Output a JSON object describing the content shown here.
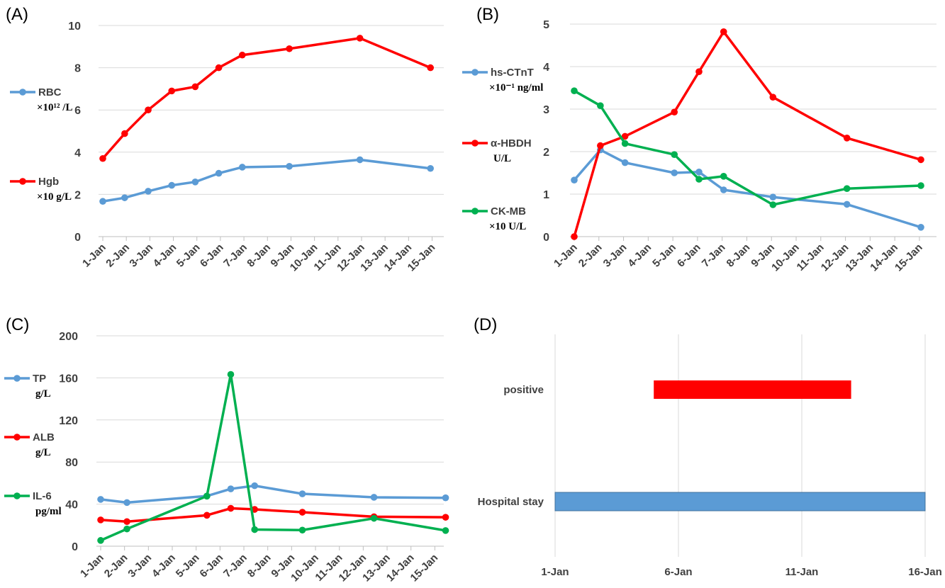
{
  "chart_data": [
    {
      "panel": "(A)",
      "type": "line",
      "categories": [
        "1-Jan",
        "2-Jan",
        "3-Jan",
        "4-Jan",
        "5-Jan",
        "6-Jan",
        "7-Jan",
        "8-Jan",
        "9-Jan",
        "10-Jan",
        "11-Jan",
        "12-Jan",
        "13-Jan",
        "14-Jan",
        "15-Jan"
      ],
      "ylim": [
        0,
        10
      ],
      "yticks": [
        0,
        2,
        4,
        6,
        8,
        10
      ],
      "grid": true,
      "legend_position": "left",
      "series": [
        {
          "name": "RBC",
          "unit": "×10¹² /L",
          "color": "#5b9bd5",
          "points": [
            [
              0,
              1.67
            ],
            [
              0.93,
              1.84
            ],
            [
              1.93,
              2.15
            ],
            [
              2.93,
              2.43
            ],
            [
              3.93,
              2.59
            ],
            [
              4.93,
              3.0
            ],
            [
              5.93,
              3.29
            ],
            [
              7.93,
              3.33
            ],
            [
              10.93,
              3.64
            ],
            [
              13.93,
              3.23
            ]
          ]
        },
        {
          "name": "Hgb",
          "unit": "×10 g/L",
          "color": "#ff0000",
          "points": [
            [
              0,
              3.7
            ],
            [
              0.93,
              4.88
            ],
            [
              1.93,
              6.0
            ],
            [
              2.93,
              6.9
            ],
            [
              3.93,
              7.1
            ],
            [
              4.93,
              8.0
            ],
            [
              5.93,
              8.6
            ],
            [
              7.93,
              8.9
            ],
            [
              10.93,
              9.4
            ],
            [
              13.93,
              8.0
            ]
          ]
        }
      ]
    },
    {
      "panel": "(B)",
      "type": "line",
      "categories": [
        "1-Jan",
        "2-Jan",
        "3-Jan",
        "4-Jan",
        "5-Jan",
        "6-Jan",
        "7-Jan",
        "8-Jan",
        "9-Jan",
        "10-Jan",
        "11-Jan",
        "12-Jan",
        "13-Jan",
        "14-Jan",
        "15-Jan"
      ],
      "ylim": [
        0,
        5
      ],
      "yticks": [
        0,
        1,
        2,
        3,
        4,
        5
      ],
      "grid": true,
      "legend_position": "left",
      "series": [
        {
          "name": "hs-CTnT",
          "unit": "×10⁻¹ ng/ml",
          "color": "#5b9bd5",
          "points": [
            [
              0,
              1.33
            ],
            [
              1.06,
              2.04
            ],
            [
              2.06,
              1.74
            ],
            [
              4.06,
              1.5
            ],
            [
              5.06,
              1.52
            ],
            [
              6.06,
              1.1
            ],
            [
              8.06,
              0.93
            ],
            [
              11.06,
              0.76
            ],
            [
              14.06,
              0.22
            ]
          ]
        },
        {
          "name": "α-HBDH",
          "unit": "U/L",
          "color": "#ff0000",
          "points": [
            [
              0,
              0.0
            ],
            [
              1.06,
              2.14
            ],
            [
              2.06,
              2.36
            ],
            [
              4.06,
              2.93
            ],
            [
              5.06,
              3.88
            ],
            [
              6.06,
              4.82
            ],
            [
              8.06,
              3.28
            ],
            [
              11.06,
              2.32
            ],
            [
              14.06,
              1.81
            ]
          ]
        },
        {
          "name": "CK-MB",
          "unit": "×10 U/L",
          "color": "#00b050",
          "points": [
            [
              0,
              3.43
            ],
            [
              1.06,
              3.08
            ],
            [
              2.06,
              2.19
            ],
            [
              4.06,
              1.93
            ],
            [
              5.06,
              1.35
            ],
            [
              6.06,
              1.42
            ],
            [
              8.06,
              0.75
            ],
            [
              11.06,
              1.13
            ],
            [
              14.06,
              1.2
            ]
          ]
        }
      ]
    },
    {
      "panel": "(C)",
      "type": "line",
      "categories": [
        "1-Jan",
        "2-Jan",
        "3-Jan",
        "4-Jan",
        "5-Jan",
        "6-Jan",
        "7-Jan",
        "8-Jan",
        "9-Jan",
        "10-Jan",
        "11-Jan",
        "12-Jan",
        "13-Jan",
        "14-Jan",
        "15-Jan"
      ],
      "ylim": [
        0,
        200
      ],
      "yticks": [
        0,
        40,
        80,
        120,
        160,
        200
      ],
      "grid": true,
      "legend_position": "left",
      "series": [
        {
          "name": "TP",
          "unit": "g/L",
          "color": "#5b9bd5",
          "points": [
            [
              0,
              44.5
            ],
            [
              1.1,
              41.5
            ],
            [
              4.45,
              47.7
            ],
            [
              5.45,
              54.5
            ],
            [
              6.45,
              57.5
            ],
            [
              8.45,
              49.8
            ],
            [
              11.45,
              46.5
            ],
            [
              14.45,
              46.0
            ]
          ]
        },
        {
          "name": "ALB",
          "unit": "g/L",
          "color": "#ff0000",
          "points": [
            [
              0,
              25.0
            ],
            [
              1.1,
              23.4
            ],
            [
              4.45,
              29.4
            ],
            [
              5.45,
              36.0
            ],
            [
              6.45,
              35.0
            ],
            [
              8.45,
              32.3
            ],
            [
              11.45,
              28.0
            ],
            [
              14.45,
              27.5
            ]
          ]
        },
        {
          "name": "IL-6",
          "unit": "pg/ml",
          "color": "#00b050",
          "points": [
            [
              0,
              5.5
            ],
            [
              1.1,
              16.4
            ],
            [
              4.45,
              47.6
            ],
            [
              5.45,
              163.3
            ],
            [
              6.45,
              15.8
            ],
            [
              8.45,
              15.3
            ],
            [
              11.45,
              26.5
            ],
            [
              14.45,
              14.9
            ]
          ]
        }
      ]
    },
    {
      "panel": "(D)",
      "type": "bar",
      "orientation": "horizontal",
      "x_ticks": [
        "1-Jan",
        "6-Jan",
        "11-Jan",
        "16-Jan"
      ],
      "x_tick_days": [
        1,
        6,
        11,
        16
      ],
      "xlim": [
        1,
        16
      ],
      "grid": true,
      "bars": [
        {
          "label": "positive",
          "start": 5.0,
          "end": 13.0,
          "color": "#ff0000"
        },
        {
          "label": "Hospital stay",
          "start": 1.0,
          "end": 16.0,
          "color": "#5b9bd5"
        }
      ]
    }
  ]
}
